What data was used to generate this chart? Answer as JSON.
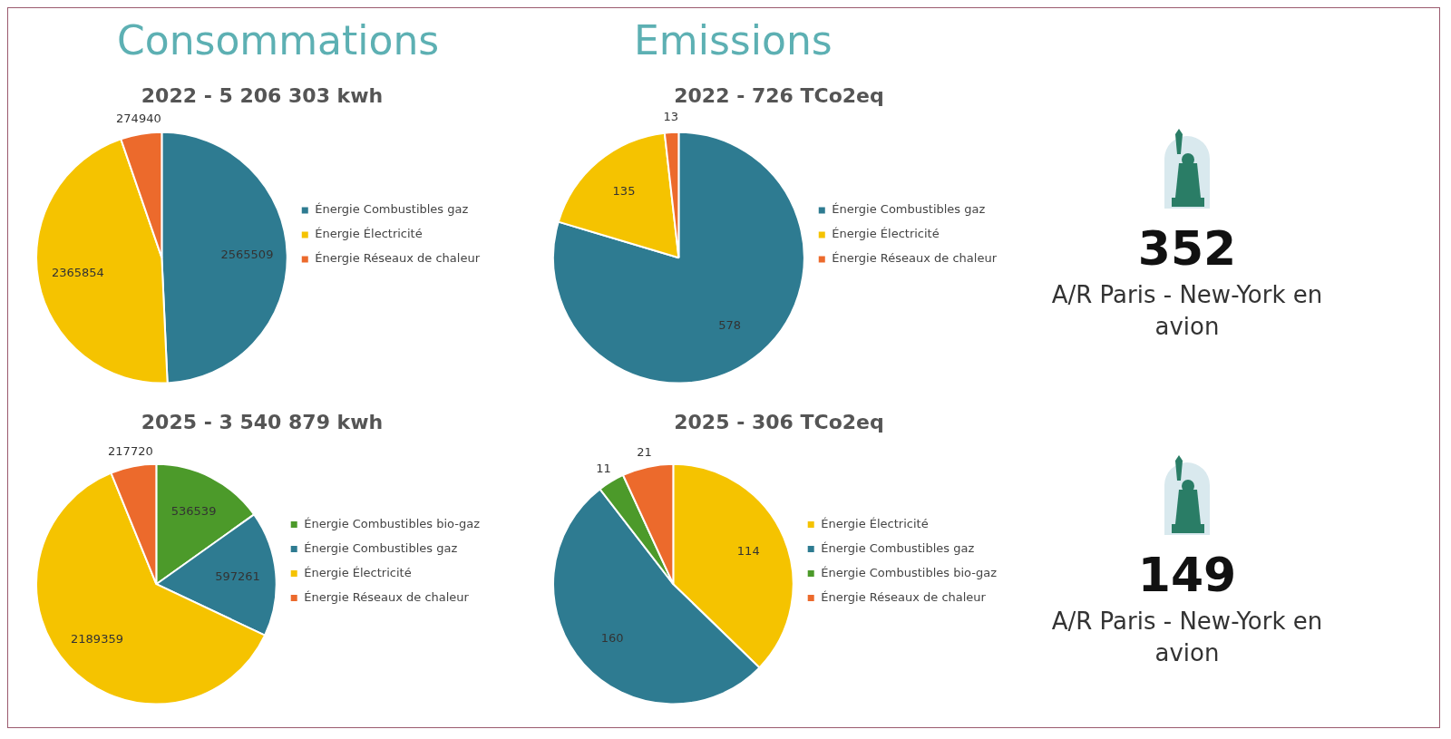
{
  "chart_data": [
    {
      "type": "other",
      "title": "Consommations"
    },
    {
      "type": "other",
      "title": "Emissions"
    },
    {
      "type": "pie",
      "title": "2022 - 5 206 303 kwh",
      "categories": [
        "Énergie Combustibles gaz",
        "Énergie Électricité",
        "Énergie Réseaux de chaleur"
      ],
      "values": [
        2565509,
        2365854,
        274940
      ],
      "colors": [
        "#2e7b91",
        "#f5c300",
        "#ec6a2c"
      ],
      "data_labels": true,
      "legend": "right"
    },
    {
      "type": "pie",
      "title": "2022 - 726 TCo2eq",
      "categories": [
        "Énergie Combustibles gaz",
        "Énergie Électricité",
        "Énergie Réseaux de chaleur"
      ],
      "values": [
        578,
        135,
        13
      ],
      "colors": [
        "#2e7b91",
        "#f5c300",
        "#ec6a2c"
      ],
      "data_labels": true,
      "legend": "right"
    },
    {
      "type": "other",
      "title": "352",
      "annotations": [
        "A/R Paris - New-York en avion"
      ]
    },
    {
      "type": "pie",
      "title": "2025 - 3 540 879 kwh",
      "categories": [
        "Énergie Combustibles bio-gaz",
        "Énergie Combustibles gaz",
        "Énergie Électricité",
        "Énergie Réseaux de chaleur"
      ],
      "values": [
        536539,
        597261,
        2189359,
        217720
      ],
      "colors": [
        "#4c9a2a",
        "#2e7b91",
        "#f5c300",
        "#ec6a2c"
      ],
      "data_labels": true,
      "legend": "right"
    },
    {
      "type": "pie",
      "title": "2025 - 306 TCo2eq",
      "categories": [
        "Énergie Électricité",
        "Énergie Combustibles gaz",
        "Énergie Combustibles bio-gaz",
        "Énergie Réseaux de chaleur"
      ],
      "values": [
        114,
        160,
        11,
        21
      ],
      "colors": [
        "#f5c300",
        "#2e7b91",
        "#4c9a2a",
        "#ec6a2c"
      ],
      "data_labels": true,
      "legend": "right"
    },
    {
      "type": "other",
      "title": "149",
      "annotations": [
        "A/R Paris - New-York en avion"
      ]
    }
  ]
}
